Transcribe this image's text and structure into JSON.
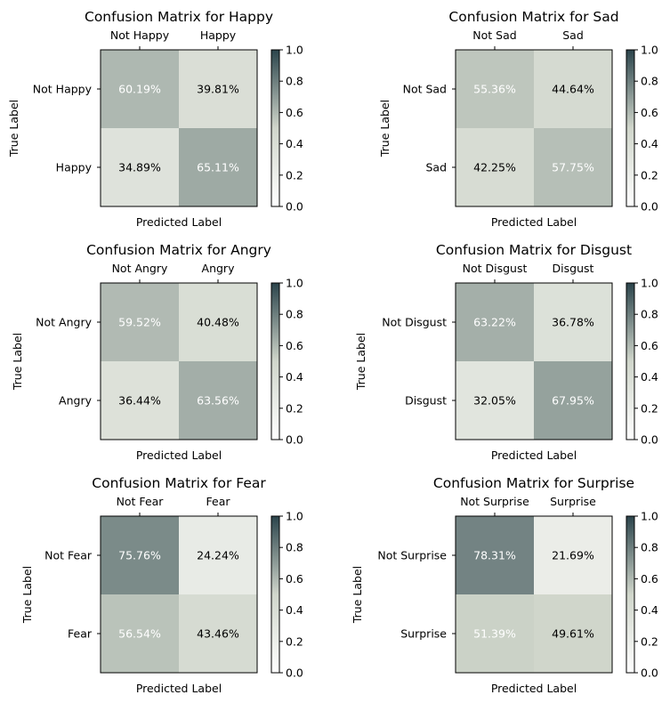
{
  "colorbar": {
    "ticks": [
      "0.0",
      "0.2",
      "0.4",
      "0.6",
      "0.8",
      "1.0"
    ],
    "min": 0,
    "max": 1,
    "colormap": [
      "#ffffff",
      "#d0d6cb",
      "#2b444b"
    ]
  },
  "chart_data": [
    {
      "type": "heatmap",
      "title": "Confusion Matrix for Happy",
      "xlabel": "Predicted Label",
      "ylabel": "True Label",
      "x_categories": [
        "Not Happy",
        "Happy"
      ],
      "y_categories": [
        "Not Happy",
        "Happy"
      ],
      "values": [
        [
          0.6019,
          0.3981
        ],
        [
          0.3489,
          0.6511
        ]
      ],
      "labels": [
        [
          "60.19%",
          "39.81%"
        ],
        [
          "34.89%",
          "65.11%"
        ]
      ]
    },
    {
      "type": "heatmap",
      "title": "Confusion Matrix for Sad",
      "xlabel": "Predicted Label",
      "ylabel": "True Label",
      "x_categories": [
        "Not Sad",
        "Sad"
      ],
      "y_categories": [
        "Not Sad",
        "Sad"
      ],
      "values": [
        [
          0.5536,
          0.4464
        ],
        [
          0.4225,
          0.5775
        ]
      ],
      "labels": [
        [
          "55.36%",
          "44.64%"
        ],
        [
          "42.25%",
          "57.75%"
        ]
      ]
    },
    {
      "type": "heatmap",
      "title": "Confusion Matrix for Angry",
      "xlabel": "Predicted Label",
      "ylabel": "True Label",
      "x_categories": [
        "Not Angry",
        "Angry"
      ],
      "y_categories": [
        "Not Angry",
        "Angry"
      ],
      "values": [
        [
          0.5952,
          0.4048
        ],
        [
          0.3644,
          0.6356
        ]
      ],
      "labels": [
        [
          "59.52%",
          "40.48%"
        ],
        [
          "36.44%",
          "63.56%"
        ]
      ]
    },
    {
      "type": "heatmap",
      "title": "Confusion Matrix for Disgust",
      "xlabel": "Predicted Label",
      "ylabel": "True Label",
      "x_categories": [
        "Not Disgust",
        "Disgust"
      ],
      "y_categories": [
        "Not Disgust",
        "Disgust"
      ],
      "values": [
        [
          0.6322,
          0.3678
        ],
        [
          0.3205,
          0.6795
        ]
      ],
      "labels": [
        [
          "63.22%",
          "36.78%"
        ],
        [
          "32.05%",
          "67.95%"
        ]
      ]
    },
    {
      "type": "heatmap",
      "title": "Confusion Matrix for Fear",
      "xlabel": "Predicted Label",
      "ylabel": "True Label",
      "x_categories": [
        "Not Fear",
        "Fear"
      ],
      "y_categories": [
        "Not Fear",
        "Fear"
      ],
      "values": [
        [
          0.7576,
          0.2424
        ],
        [
          0.5654,
          0.4346
        ]
      ],
      "labels": [
        [
          "75.76%",
          "24.24%"
        ],
        [
          "56.54%",
          "43.46%"
        ]
      ]
    },
    {
      "type": "heatmap",
      "title": "Confusion Matrix for Surprise",
      "xlabel": "Predicted Label",
      "ylabel": "True Label",
      "x_categories": [
        "Not Surprise",
        "Surprise"
      ],
      "y_categories": [
        "Not Surprise",
        "Surprise"
      ],
      "values": [
        [
          0.7831,
          0.2169
        ],
        [
          0.5139,
          0.4961
        ]
      ],
      "labels": [
        [
          "78.31%",
          "21.69%"
        ],
        [
          "51.39%",
          "49.61%"
        ]
      ]
    }
  ]
}
